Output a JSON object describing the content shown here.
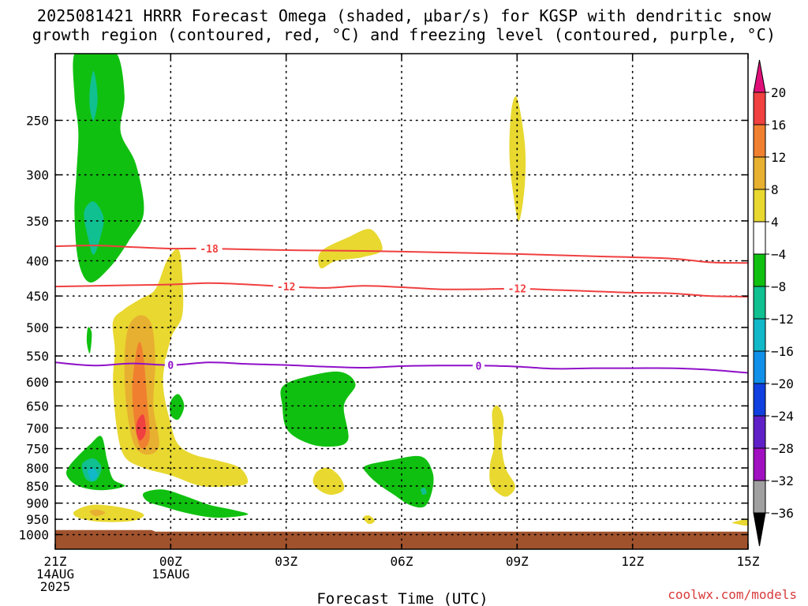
{
  "title_line1": "2025081421 HRRR Forecast Omega (shaded, μbar/s) for KGSP with dendritic snow",
  "title_line2": "growth region (contoured, red, °C) and freezing level (contoured, purple, °C)",
  "credit": "coolwx.com/models",
  "chart_data": {
    "type": "heatmap",
    "title": "2025081421 HRRR Forecast Omega (shaded, μbar/s) for KGSP with dendritic snow growth region (contoured, red, °C) and freezing level (contoured, purple, °C)",
    "xlabel": "Forecast Time (UTC)",
    "ylabel": "",
    "x_axis": {
      "range_hours": [
        0,
        18
      ],
      "ticks": [
        {
          "hour": 0,
          "lines": [
            "21Z",
            "14AUG",
            "2025"
          ]
        },
        {
          "hour": 3,
          "lines": [
            "00Z",
            "15AUG"
          ]
        },
        {
          "hour": 6,
          "lines": [
            "03Z"
          ]
        },
        {
          "hour": 9,
          "lines": [
            "06Z"
          ]
        },
        {
          "hour": 12,
          "lines": [
            "09Z"
          ]
        },
        {
          "hour": 15,
          "lines": [
            "12Z"
          ]
        },
        {
          "hour": 18,
          "lines": [
            "15Z"
          ]
        }
      ]
    },
    "y_axis": {
      "units": "hPa",
      "range": [
        1050,
        200
      ],
      "scale": "log",
      "inverted": true,
      "ticks": [
        250,
        300,
        350,
        400,
        450,
        500,
        550,
        600,
        650,
        700,
        750,
        800,
        850,
        900,
        950,
        1000
      ],
      "grid": "dotted"
    },
    "colorbar": {
      "labels": [
        20,
        16,
        12,
        8,
        4,
        -4,
        -8,
        -12,
        -16,
        -20,
        -24,
        -28,
        -32,
        -36
      ],
      "bins": [
        {
          "from": 20,
          "to": null,
          "color": "#e0107a"
        },
        {
          "from": 16,
          "to": 20,
          "color": "#f04040"
        },
        {
          "from": 12,
          "to": 16,
          "color": "#f08030"
        },
        {
          "from": 8,
          "to": 12,
          "color": "#e8b030"
        },
        {
          "from": 4,
          "to": 8,
          "color": "#e8d830"
        },
        {
          "from": -4,
          "to": 4,
          "color": "#ffffff"
        },
        {
          "from": -8,
          "to": -4,
          "color": "#10c010"
        },
        {
          "from": -12,
          "to": -8,
          "color": "#10c090"
        },
        {
          "from": -16,
          "to": -12,
          "color": "#10b8c8"
        },
        {
          "from": -20,
          "to": -16,
          "color": "#1090e8"
        },
        {
          "from": -24,
          "to": -20,
          "color": "#1040e0"
        },
        {
          "from": -28,
          "to": -24,
          "color": "#6020c8"
        },
        {
          "from": -32,
          "to": -28,
          "color": "#a010c0"
        },
        {
          "from": -36,
          "to": -32,
          "color": "#a0a0a0"
        },
        {
          "from": null,
          "to": -36,
          "color": "#000000"
        }
      ]
    },
    "contours": [
      {
        "name": "-18",
        "color": "#f04040",
        "label": "-18",
        "label_hour": 4.0,
        "points": [
          [
            0,
            381
          ],
          [
            1,
            380
          ],
          [
            2,
            382
          ],
          [
            3,
            384
          ],
          [
            4,
            384
          ],
          [
            6,
            386
          ],
          [
            8,
            387
          ],
          [
            10,
            389
          ],
          [
            12,
            391
          ],
          [
            14,
            394
          ],
          [
            16,
            397
          ],
          [
            17,
            402
          ],
          [
            18,
            403
          ]
        ]
      },
      {
        "name": "-12",
        "color": "#f04040",
        "label": "-12",
        "label_hour": 6.0,
        "label2_hour": 12.0,
        "points": [
          [
            0,
            436
          ],
          [
            1,
            435
          ],
          [
            2,
            434
          ],
          [
            3,
            433
          ],
          [
            4,
            431
          ],
          [
            5,
            433
          ],
          [
            6,
            436
          ],
          [
            7,
            438
          ],
          [
            8,
            435
          ],
          [
            9,
            437
          ],
          [
            10,
            440
          ],
          [
            11,
            440
          ],
          [
            12,
            439
          ],
          [
            13,
            441
          ],
          [
            14,
            443
          ],
          [
            15,
            445
          ],
          [
            16,
            446
          ],
          [
            17,
            450
          ],
          [
            18,
            451
          ]
        ]
      },
      {
        "name": "0",
        "color": "#9010c8",
        "label": "0",
        "label_hour": 3.0,
        "label2_hour": 11.0,
        "points": [
          [
            0,
            562
          ],
          [
            1,
            568
          ],
          [
            2,
            564
          ],
          [
            3,
            567
          ],
          [
            4,
            562
          ],
          [
            5,
            565
          ],
          [
            6,
            567
          ],
          [
            7,
            570
          ],
          [
            8,
            572
          ],
          [
            9,
            569
          ],
          [
            10,
            568
          ],
          [
            11,
            568
          ],
          [
            12,
            570
          ],
          [
            13,
            574
          ],
          [
            14,
            573
          ],
          [
            15,
            573
          ],
          [
            16,
            573
          ],
          [
            17,
            576
          ],
          [
            18,
            582
          ]
        ]
      }
    ],
    "omega_regions": [
      {
        "value": -6,
        "points": [
          [
            0.5,
            200
          ],
          [
            1.0,
            198
          ],
          [
            1.6,
            200
          ],
          [
            1.8,
            230
          ],
          [
            1.7,
            260
          ],
          [
            2.1,
            290
          ],
          [
            2.3,
            340
          ],
          [
            1.9,
            375
          ],
          [
            1.4,
            410
          ],
          [
            0.9,
            430
          ],
          [
            0.6,
            400
          ],
          [
            0.5,
            340
          ],
          [
            0.55,
            300
          ],
          [
            0.6,
            260
          ],
          [
            0.5,
            230
          ]
        ]
      },
      {
        "value": -10,
        "points": [
          [
            0.9,
            225
          ],
          [
            1.0,
            212
          ],
          [
            1.1,
            232
          ],
          [
            1.0,
            250
          ],
          [
            0.9,
            240
          ]
        ]
      },
      {
        "value": -10,
        "points": [
          [
            0.75,
            340
          ],
          [
            1.0,
            328
          ],
          [
            1.25,
            345
          ],
          [
            1.2,
            365
          ],
          [
            1.0,
            392
          ],
          [
            0.85,
            370
          ]
        ]
      },
      {
        "value": -6,
        "points": [
          [
            0.85,
            500
          ],
          [
            0.95,
            510
          ],
          [
            0.9,
            545
          ],
          [
            0.82,
            525
          ]
        ]
      },
      {
        "value": 6,
        "points": [
          [
            1.5,
            490
          ],
          [
            1.8,
            470
          ],
          [
            2.2,
            455
          ],
          [
            2.6,
            440
          ],
          [
            2.9,
            400
          ],
          [
            3.2,
            385
          ],
          [
            3.3,
            420
          ],
          [
            3.3,
            480
          ],
          [
            3.0,
            520
          ],
          [
            2.8,
            600
          ],
          [
            3.0,
            690
          ],
          [
            3.2,
            740
          ],
          [
            3.6,
            765
          ],
          [
            4.2,
            780
          ],
          [
            4.8,
            800
          ],
          [
            5.0,
            840
          ],
          [
            4.6,
            850
          ],
          [
            3.8,
            850
          ],
          [
            3.0,
            820
          ],
          [
            2.3,
            800
          ],
          [
            1.8,
            770
          ],
          [
            1.6,
            700
          ],
          [
            1.5,
            600
          ],
          [
            1.55,
            540
          ]
        ]
      },
      {
        "value": 10,
        "points": [
          [
            1.9,
            500
          ],
          [
            2.2,
            480
          ],
          [
            2.5,
            495
          ],
          [
            2.6,
            560
          ],
          [
            2.55,
            650
          ],
          [
            2.7,
            740
          ],
          [
            2.4,
            765
          ],
          [
            2.05,
            740
          ],
          [
            1.85,
            650
          ],
          [
            1.8,
            560
          ]
        ]
      },
      {
        "value": 14,
        "points": [
          [
            2.1,
            545
          ],
          [
            2.2,
            525
          ],
          [
            2.3,
            555
          ],
          [
            2.4,
            650
          ],
          [
            2.45,
            725
          ],
          [
            2.25,
            750
          ],
          [
            2.1,
            710
          ],
          [
            2.0,
            620
          ]
        ]
      },
      {
        "value": 18,
        "points": [
          [
            2.15,
            680
          ],
          [
            2.3,
            670
          ],
          [
            2.35,
            710
          ],
          [
            2.2,
            730
          ],
          [
            2.1,
            705
          ]
        ]
      },
      {
        "value": -6,
        "points": [
          [
            0.4,
            790
          ],
          [
            0.9,
            740
          ],
          [
            1.2,
            720
          ],
          [
            1.35,
            780
          ],
          [
            1.5,
            830
          ],
          [
            1.8,
            850
          ],
          [
            1.2,
            862
          ],
          [
            0.6,
            850
          ],
          [
            0.3,
            820
          ]
        ]
      },
      {
        "value": -10,
        "points": [
          [
            0.7,
            790
          ],
          [
            1.0,
            775
          ],
          [
            1.2,
            800
          ],
          [
            1.05,
            835
          ],
          [
            0.8,
            830
          ]
        ]
      },
      {
        "value": -14,
        "points": [
          [
            0.85,
            808
          ],
          [
            1.0,
            800
          ],
          [
            1.1,
            820
          ],
          [
            0.95,
            835
          ]
        ]
      },
      {
        "value": -6,
        "points": [
          [
            3.0,
            640
          ],
          [
            3.2,
            625
          ],
          [
            3.35,
            650
          ],
          [
            3.2,
            680
          ],
          [
            3.0,
            670
          ]
        ]
      },
      {
        "value": -6,
        "points": [
          [
            2.3,
            870
          ],
          [
            2.8,
            860
          ],
          [
            3.4,
            880
          ],
          [
            4.0,
            905
          ],
          [
            4.6,
            920
          ],
          [
            5.0,
            935
          ],
          [
            4.2,
            945
          ],
          [
            3.4,
            930
          ],
          [
            2.8,
            910
          ],
          [
            2.4,
            895
          ]
        ]
      },
      {
        "value": 6,
        "points": [
          [
            0.5,
            925
          ],
          [
            1.0,
            905
          ],
          [
            1.8,
            915
          ],
          [
            2.3,
            935
          ],
          [
            2.0,
            955
          ],
          [
            1.2,
            958
          ],
          [
            0.6,
            945
          ]
        ]
      },
      {
        "value": 10,
        "points": [
          [
            0.9,
            925
          ],
          [
            1.1,
            920
          ],
          [
            1.3,
            930
          ],
          [
            1.05,
            940
          ]
        ]
      },
      {
        "value": 6,
        "points": [
          [
            6.9,
            388
          ],
          [
            7.6,
            370
          ],
          [
            8.2,
            360
          ],
          [
            8.5,
            385
          ],
          [
            8.0,
            395
          ],
          [
            7.3,
            400
          ],
          [
            6.9,
            410
          ]
        ]
      },
      {
        "value": -6,
        "points": [
          [
            5.9,
            610
          ],
          [
            6.5,
            590
          ],
          [
            7.4,
            580
          ],
          [
            7.8,
            605
          ],
          [
            7.5,
            650
          ],
          [
            7.6,
            730
          ],
          [
            7.0,
            745
          ],
          [
            6.4,
            730
          ],
          [
            6.0,
            700
          ],
          [
            5.9,
            650
          ]
        ]
      },
      {
        "value": 6,
        "points": [
          [
            6.8,
            810
          ],
          [
            7.1,
            800
          ],
          [
            7.4,
            825
          ],
          [
            7.5,
            860
          ],
          [
            7.2,
            875
          ],
          [
            6.9,
            865
          ],
          [
            6.7,
            840
          ]
        ]
      },
      {
        "value": 6,
        "points": [
          [
            8.0,
            945
          ],
          [
            8.15,
            938
          ],
          [
            8.3,
            955
          ],
          [
            8.15,
            965
          ]
        ]
      },
      {
        "value": -6,
        "points": [
          [
            8.05,
            795
          ],
          [
            8.7,
            780
          ],
          [
            9.5,
            770
          ],
          [
            9.8,
            810
          ],
          [
            9.8,
            860
          ],
          [
            9.6,
            910
          ],
          [
            9.2,
            905
          ],
          [
            8.8,
            875
          ],
          [
            8.4,
            845
          ],
          [
            8.1,
            815
          ]
        ]
      },
      {
        "value": -10,
        "points": [
          [
            9.5,
            860
          ],
          [
            9.6,
            855
          ],
          [
            9.65,
            870
          ],
          [
            9.55,
            875
          ]
        ]
      },
      {
        "value": 6,
        "points": [
          [
            11.35,
            665
          ],
          [
            11.5,
            650
          ],
          [
            11.65,
            680
          ],
          [
            11.6,
            740
          ],
          [
            11.7,
            800
          ],
          [
            11.95,
            850
          ],
          [
            11.75,
            880
          ],
          [
            11.5,
            870
          ],
          [
            11.3,
            840
          ],
          [
            11.3,
            790
          ],
          [
            11.4,
            740
          ]
        ]
      },
      {
        "value": 6,
        "points": [
          [
            11.85,
            242
          ],
          [
            12.0,
            232
          ],
          [
            12.2,
            270
          ],
          [
            12.2,
            310
          ],
          [
            12.05,
            350
          ],
          [
            11.9,
            320
          ],
          [
            11.8,
            280
          ]
        ]
      },
      {
        "value": 6,
        "points": [
          [
            17.6,
            960
          ],
          [
            18.0,
            950
          ],
          [
            18.0,
            970
          ],
          [
            17.7,
            965
          ]
        ]
      }
    ],
    "ground": {
      "top_hPa_left": 985,
      "top_hPa_right": 990,
      "color": "#a0522d"
    }
  }
}
